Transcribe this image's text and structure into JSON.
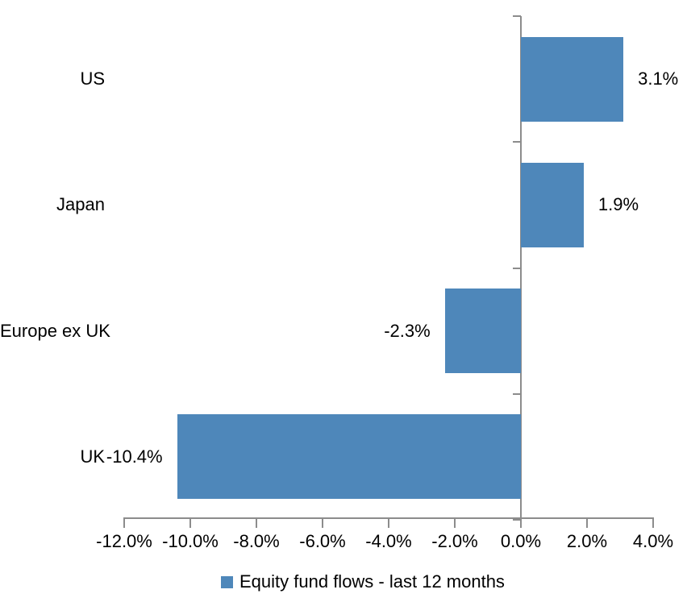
{
  "chart_data": {
    "type": "bar",
    "orientation": "horizontal",
    "categories": [
      "US",
      "Japan",
      "Europe ex UK",
      "UK"
    ],
    "series": [
      {
        "name": "Equity fund flows - last 12 months",
        "values": [
          3.1,
          1.9,
          -2.3,
          -10.4
        ]
      }
    ],
    "data_labels": [
      "3.1%",
      "1.9%",
      "-2.3%",
      "-10.4%"
    ],
    "x_ticks": [
      {
        "value": -12,
        "label": "-12.0%"
      },
      {
        "value": -10,
        "label": "-10.0%"
      },
      {
        "value": -8,
        "label": "-8.0%"
      },
      {
        "value": -6,
        "label": "-6.0%"
      },
      {
        "value": -4,
        "label": "-4.0%"
      },
      {
        "value": -2,
        "label": "-2.0%"
      },
      {
        "value": 0,
        "label": "0.0%"
      },
      {
        "value": 2,
        "label": "2.0%"
      },
      {
        "value": 4,
        "label": "4.0%"
      }
    ],
    "xlim": [
      -12,
      4
    ],
    "grid": false,
    "legend_position": "bottom",
    "legend": {
      "label": "Equity fund flows - last 12 months"
    },
    "colors": {
      "bar": "#4e87ba",
      "axis": "#8c8c8c",
      "text": "#000000",
      "background": "#ffffff"
    }
  }
}
